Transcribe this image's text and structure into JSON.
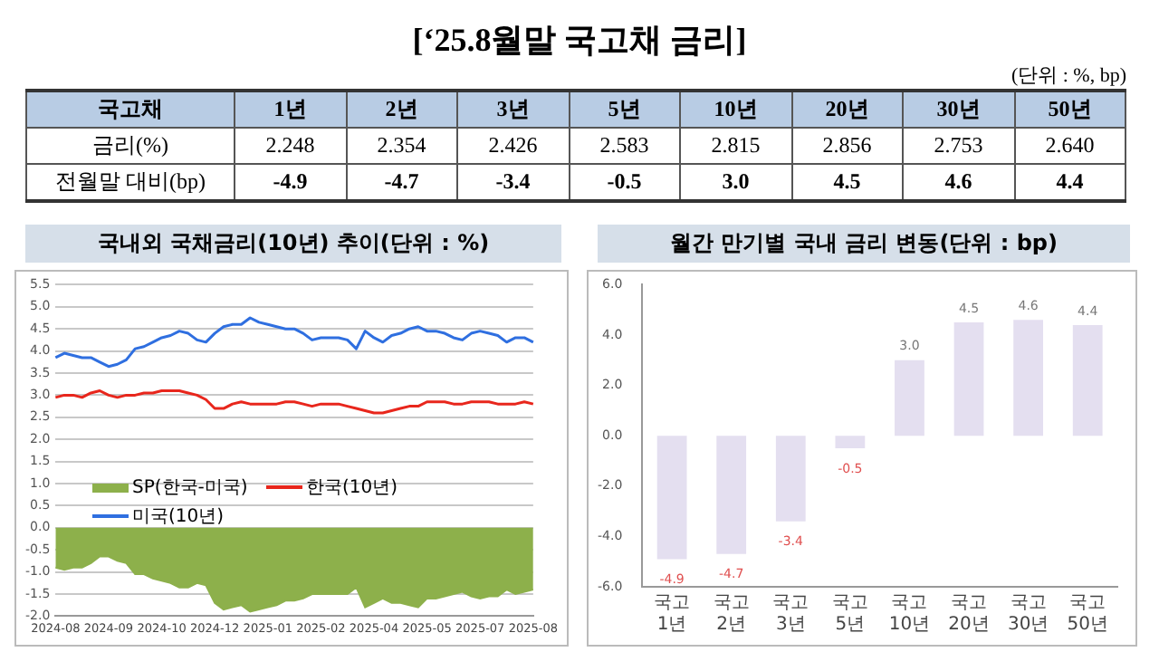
{
  "chart_data": [
    {
      "type": "other",
      "title": "[‘25.8월말 국고채 금리]",
      "annotations": [
        "(단위 : %, bp)"
      ],
      "xlabel": "국고채",
      "categories": [
        "1년",
        "2년",
        "3년",
        "5년",
        "10년",
        "20년",
        "30년",
        "50년"
      ],
      "series": [
        {
          "name": "금리(%)",
          "values": [
            2.248,
            2.354,
            2.426,
            2.583,
            2.815,
            2.856,
            2.753,
            2.64
          ],
          "value_labels": [
            "2.248",
            "2.354",
            "2.426",
            "2.583",
            "2.815",
            "2.856",
            "2.753",
            "2.640"
          ]
        },
        {
          "name": "전월말 대비(bp)",
          "values": [
            -4.9,
            -4.7,
            -3.4,
            -0.5,
            3.0,
            4.5,
            4.6,
            4.4
          ],
          "value_labels": [
            "-4.9",
            "-4.7",
            "-3.4",
            "-0.5",
            "3.0",
            "4.5",
            "4.6",
            "4.4"
          ]
        }
      ]
    },
    {
      "type": "line",
      "title": "국내외 국채금리(10년) 추이(단위 : %)",
      "categories": [
        "2024-08",
        null,
        null,
        null,
        null,
        null,
        "2024-09",
        null,
        null,
        null,
        null,
        null,
        "2024-10",
        null,
        null,
        null,
        null,
        null,
        "2024-12",
        null,
        null,
        null,
        null,
        null,
        "2025-01",
        null,
        null,
        null,
        null,
        null,
        "2025-02",
        null,
        null,
        null,
        null,
        null,
        "2025-04",
        null,
        null,
        null,
        null,
        null,
        "2025-05",
        null,
        null,
        null,
        null,
        null,
        "2025-07",
        null,
        null,
        null,
        null,
        null,
        "2025-08"
      ],
      "series": [
        {
          "name": "SP(한국-미국)",
          "type": "area",
          "color": "#8db04b",
          "values": [
            -0.9,
            -0.95,
            -0.9,
            -0.9,
            -0.8,
            -0.65,
            -0.65,
            -0.75,
            -0.8,
            -1.05,
            -1.05,
            -1.15,
            -1.2,
            -1.25,
            -1.35,
            -1.35,
            -1.25,
            -1.3,
            -1.7,
            -1.85,
            -1.8,
            -1.75,
            -1.9,
            -1.85,
            -1.8,
            -1.75,
            -1.65,
            -1.65,
            -1.6,
            -1.5,
            -1.5,
            -1.5,
            -1.5,
            -1.5,
            -1.35,
            -1.8,
            -1.7,
            -1.6,
            -1.7,
            -1.7,
            -1.75,
            -1.8,
            -1.6,
            -1.6,
            -1.55,
            -1.5,
            -1.45,
            -1.55,
            -1.6,
            -1.55,
            -1.55,
            -1.4,
            -1.5,
            -1.45,
            -1.4
          ]
        },
        {
          "name": "한국(10년)",
          "type": "line",
          "color": "#e8261c",
          "values": [
            2.95,
            3.0,
            3.0,
            2.95,
            3.05,
            3.1,
            3.0,
            2.95,
            3.0,
            3.0,
            3.05,
            3.05,
            3.1,
            3.1,
            3.1,
            3.05,
            3.0,
            2.9,
            2.7,
            2.7,
            2.8,
            2.85,
            2.8,
            2.8,
            2.8,
            2.8,
            2.85,
            2.85,
            2.8,
            2.75,
            2.8,
            2.8,
            2.8,
            2.75,
            2.7,
            2.65,
            2.6,
            2.6,
            2.65,
            2.7,
            2.75,
            2.75,
            2.85,
            2.85,
            2.85,
            2.8,
            2.8,
            2.85,
            2.85,
            2.85,
            2.8,
            2.8,
            2.8,
            2.85,
            2.8
          ]
        },
        {
          "name": "미국(10년)",
          "type": "line",
          "color": "#2f6fe0",
          "values": [
            3.85,
            3.95,
            3.9,
            3.85,
            3.85,
            3.75,
            3.65,
            3.7,
            3.8,
            4.05,
            4.1,
            4.2,
            4.3,
            4.35,
            4.45,
            4.4,
            4.25,
            4.2,
            4.4,
            4.55,
            4.6,
            4.6,
            4.75,
            4.65,
            4.6,
            4.55,
            4.5,
            4.5,
            4.4,
            4.25,
            4.3,
            4.3,
            4.3,
            4.25,
            4.05,
            4.45,
            4.3,
            4.2,
            4.35,
            4.4,
            4.5,
            4.55,
            4.45,
            4.45,
            4.4,
            4.3,
            4.25,
            4.4,
            4.45,
            4.4,
            4.35,
            4.2,
            4.3,
            4.3,
            4.2
          ]
        }
      ],
      "ylim": [
        -2,
        5.5
      ],
      "yticks": [
        {
          "value": -2,
          "label": "-2.0"
        },
        {
          "value": -1.5,
          "label": "-1.5"
        },
        {
          "value": -1,
          "label": "-1.0"
        },
        {
          "value": -0.5,
          "label": "-0.5"
        },
        {
          "value": 0,
          "label": "0.0"
        },
        {
          "value": 0.5,
          "label": "0.5"
        },
        {
          "value": 1,
          "label": "1.0"
        },
        {
          "value": 1.5,
          "label": "1.5"
        },
        {
          "value": 2,
          "label": "2.0"
        },
        {
          "value": 2.5,
          "label": "2.5"
        },
        {
          "value": 3,
          "label": "3.0"
        },
        {
          "value": 3.5,
          "label": "3.5"
        },
        {
          "value": 4,
          "label": "4.0"
        },
        {
          "value": 4.5,
          "label": "4.5"
        },
        {
          "value": 5,
          "label": "5.0"
        },
        {
          "value": 5.5,
          "label": "5.5"
        }
      ],
      "grid": "y",
      "legend": "center left",
      "marker": "none"
    },
    {
      "type": "bar",
      "title": "월간 만기별 국내 금리 변동(단위 : bp)",
      "categories": [
        "국고 1년",
        "국고 2년",
        "국고 3년",
        "국고 5년",
        "국고 10년",
        "국고 20년",
        "국고 30년",
        "국고 50년"
      ],
      "values": [
        -4.9,
        -4.7,
        -3.4,
        -0.5,
        3.0,
        4.5,
        4.6,
        4.4
      ],
      "color": "#e4dff0",
      "value_labels": [
        "-4.9",
        "-4.7",
        "-3.4",
        "-0.5",
        "3.0",
        "4.5",
        "4.6",
        "4.4"
      ],
      "ylim": [
        -6,
        6
      ],
      "yticks": [
        {
          "value": -6,
          "label": "-6.0"
        },
        {
          "value": -4,
          "label": "-4.0"
        },
        {
          "value": -2,
          "label": "-2.0"
        },
        {
          "value": 0,
          "label": "0.0"
        },
        {
          "value": 2,
          "label": "2.0"
        },
        {
          "value": 4,
          "label": "4.0"
        },
        {
          "value": 6,
          "label": "6.0"
        }
      ],
      "grid": false,
      "legend": false
    }
  ]
}
